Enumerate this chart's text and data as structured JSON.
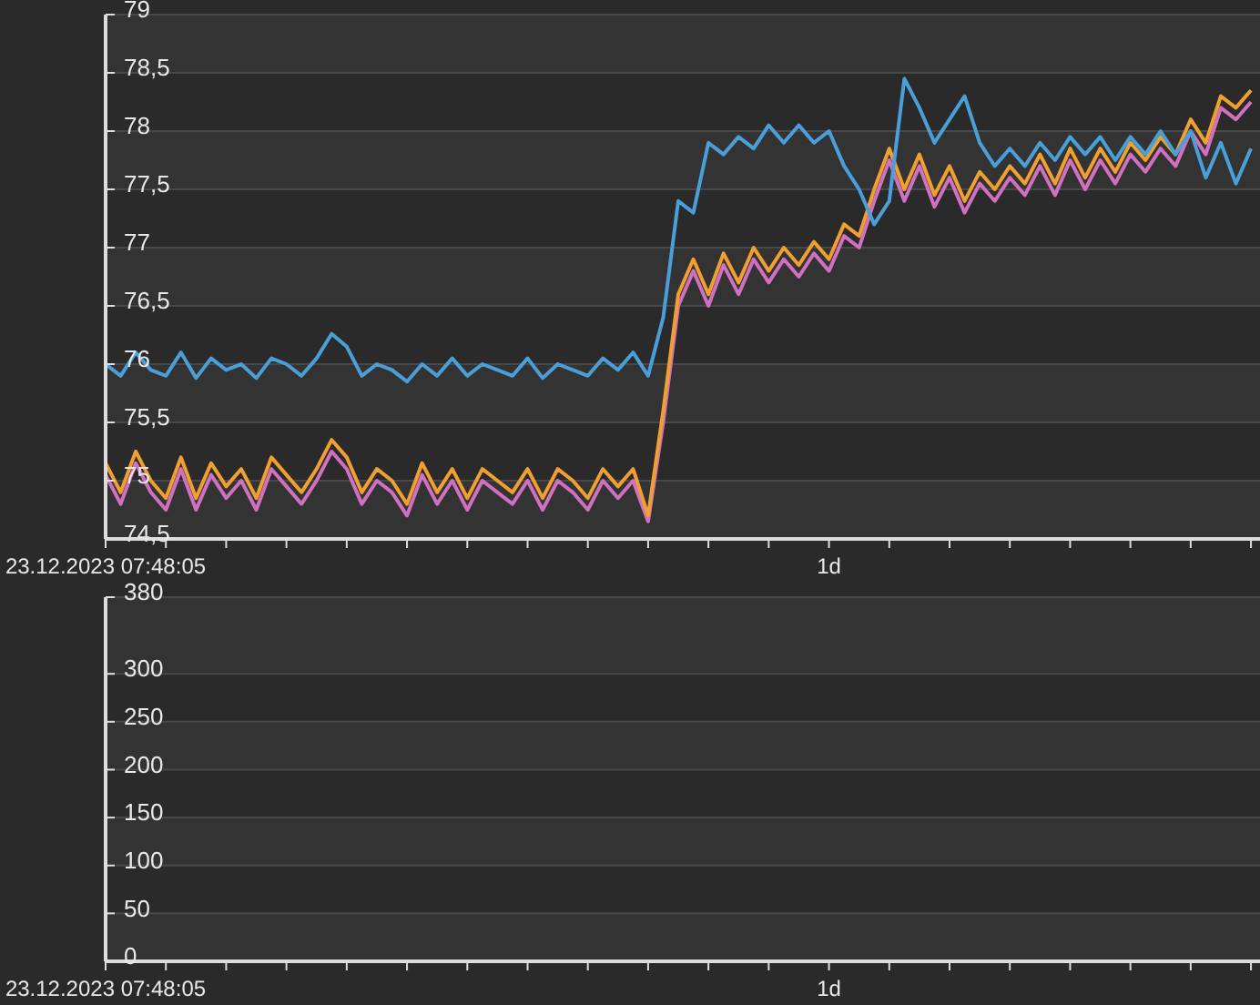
{
  "chart_data": [
    {
      "type": "line",
      "categories": [
        "23.12.2023 07:48:05",
        null,
        null,
        null,
        null,
        null,
        null,
        null,
        null,
        null,
        null,
        null,
        null,
        null,
        null,
        null,
        null,
        null,
        null,
        null,
        null,
        null,
        null,
        null,
        null,
        null,
        null,
        null,
        null,
        null,
        null,
        null,
        null,
        null,
        null,
        null,
        null,
        null,
        null,
        null,
        null,
        null,
        null,
        null,
        null,
        null,
        null,
        null,
        "1d",
        null,
        null,
        null,
        null,
        null,
        null,
        null,
        null,
        null,
        null,
        null,
        null,
        null,
        null,
        null,
        null,
        null,
        null,
        null,
        null,
        null,
        null,
        null,
        null,
        null,
        null,
        null,
        null
      ],
      "series": [
        {
          "color": "#d070c0",
          "values": [
            75.05,
            74.8,
            75.15,
            74.9,
            74.75,
            75.1,
            74.75,
            75.05,
            74.85,
            75.0,
            74.75,
            75.1,
            74.95,
            74.8,
            75.0,
            75.25,
            75.1,
            74.8,
            75.0,
            74.9,
            74.7,
            75.05,
            74.8,
            75.0,
            74.75,
            75.0,
            74.9,
            74.8,
            75.0,
            74.75,
            75.0,
            74.9,
            74.75,
            75.0,
            74.85,
            75.0,
            74.65,
            75.5,
            76.5,
            76.8,
            76.5,
            76.85,
            76.6,
            76.9,
            76.7,
            76.9,
            76.75,
            76.95,
            76.8,
            77.1,
            77.0,
            77.4,
            77.75,
            77.4,
            77.7,
            77.35,
            77.6,
            77.3,
            77.55,
            77.4,
            77.6,
            77.45,
            77.7,
            77.45,
            77.75,
            77.5,
            77.75,
            77.55,
            77.8,
            77.65,
            77.85,
            77.7,
            78.0,
            77.8,
            78.2,
            78.1,
            78.25
          ]
        },
        {
          "color": "#f0a030",
          "values": [
            75.15,
            74.9,
            75.25,
            75.0,
            74.85,
            75.2,
            74.85,
            75.15,
            74.95,
            75.1,
            74.85,
            75.2,
            75.05,
            74.9,
            75.1,
            75.35,
            75.2,
            74.9,
            75.1,
            75.0,
            74.8,
            75.15,
            74.9,
            75.1,
            74.85,
            75.1,
            75.0,
            74.9,
            75.1,
            74.85,
            75.1,
            75.0,
            74.85,
            75.1,
            74.95,
            75.1,
            74.7,
            75.6,
            76.6,
            76.9,
            76.6,
            76.95,
            76.7,
            77.0,
            76.8,
            77.0,
            76.85,
            77.05,
            76.9,
            77.2,
            77.1,
            77.5,
            77.85,
            77.5,
            77.8,
            77.45,
            77.7,
            77.4,
            77.65,
            77.5,
            77.7,
            77.55,
            77.8,
            77.55,
            77.85,
            77.6,
            77.85,
            77.65,
            77.9,
            77.75,
            77.95,
            77.8,
            78.1,
            77.9,
            78.3,
            78.2,
            78.35
          ]
        },
        {
          "color": "#4a9fd8",
          "values": [
            76.0,
            75.9,
            76.1,
            75.95,
            75.9,
            76.1,
            75.88,
            76.05,
            75.95,
            76.0,
            75.88,
            76.05,
            76.0,
            75.9,
            76.05,
            76.26,
            76.15,
            75.9,
            76.0,
            75.95,
            75.85,
            76.0,
            75.9,
            76.05,
            75.9,
            76.0,
            75.95,
            75.9,
            76.05,
            75.88,
            76.0,
            75.95,
            75.9,
            76.05,
            75.95,
            76.1,
            75.9,
            76.4,
            77.4,
            77.3,
            77.9,
            77.8,
            77.95,
            77.85,
            78.05,
            77.9,
            78.05,
            77.9,
            78.0,
            77.7,
            77.5,
            77.2,
            77.4,
            78.45,
            78.2,
            77.9,
            78.1,
            78.3,
            77.9,
            77.7,
            77.85,
            77.7,
            77.9,
            77.75,
            77.95,
            77.8,
            77.95,
            77.75,
            77.95,
            77.8,
            78.0,
            77.8,
            78.0,
            77.6,
            77.9,
            77.55,
            77.85
          ]
        }
      ],
      "ylim": [
        74.5,
        79
      ],
      "yticks": [
        {
          "value": 74.5,
          "label": "74,5"
        },
        75,
        {
          "value": 75.5,
          "label": "75,5"
        },
        76,
        {
          "value": 76.5,
          "label": "76,5"
        },
        77,
        {
          "value": 77.5,
          "label": "77,5"
        },
        78,
        {
          "value": 78.5,
          "label": "78,5"
        },
        79
      ],
      "grid": "y"
    },
    {
      "type": "line",
      "categories": [
        "23.12.2023 07:48:05",
        null,
        null,
        null,
        null,
        null,
        null,
        null,
        null,
        null,
        null,
        null,
        null,
        null,
        null,
        null,
        null,
        null,
        null,
        null,
        null,
        null,
        null,
        null,
        null,
        null,
        null,
        null,
        null,
        null,
        null,
        null,
        null,
        null,
        null,
        null,
        null,
        null,
        null,
        null,
        null,
        null,
        null,
        null,
        null,
        null,
        null,
        null,
        "1d",
        null,
        null,
        null,
        null,
        null,
        null,
        null,
        null,
        null,
        null,
        null,
        null,
        null,
        null,
        null,
        null,
        null,
        null,
        null,
        null,
        null,
        null,
        null,
        null,
        null,
        null,
        null,
        null
      ],
      "ylim": [
        0,
        380
      ],
      "yticks": [
        0,
        50,
        100,
        150,
        200,
        250,
        300,
        380
      ],
      "grid": "y"
    }
  ]
}
